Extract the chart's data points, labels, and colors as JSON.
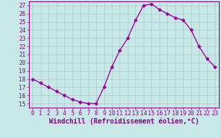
{
  "x": [
    0,
    1,
    2,
    3,
    4,
    5,
    6,
    7,
    8,
    9,
    10,
    11,
    12,
    13,
    14,
    15,
    16,
    17,
    18,
    19,
    20,
    21,
    22,
    23
  ],
  "y": [
    18,
    17.5,
    17,
    16.5,
    16,
    15.5,
    15.2,
    15,
    15,
    17,
    19.5,
    21.5,
    23,
    25.2,
    27,
    27.2,
    26.5,
    26,
    25.5,
    25.2,
    24,
    22,
    20.5,
    19.5
  ],
  "line_color": "#990099",
  "marker": "D",
  "marker_size": 2.5,
  "bg_color": "#c8e8e8",
  "grid_color": "#aac8c8",
  "xlabel": "Windchill (Refroidissement éolien,°C)",
  "xlim": [
    -0.5,
    23.5
  ],
  "ylim": [
    14.5,
    27.5
  ],
  "yticks": [
    15,
    16,
    17,
    18,
    19,
    20,
    21,
    22,
    23,
    24,
    25,
    26,
    27
  ],
  "xticks": [
    0,
    1,
    2,
    3,
    4,
    5,
    6,
    7,
    8,
    9,
    10,
    11,
    12,
    13,
    14,
    15,
    16,
    17,
    18,
    19,
    20,
    21,
    22,
    23
  ],
  "tick_label_fontsize": 6,
  "xlabel_fontsize": 7,
  "linewidth": 1.0,
  "label_color": "#880088"
}
